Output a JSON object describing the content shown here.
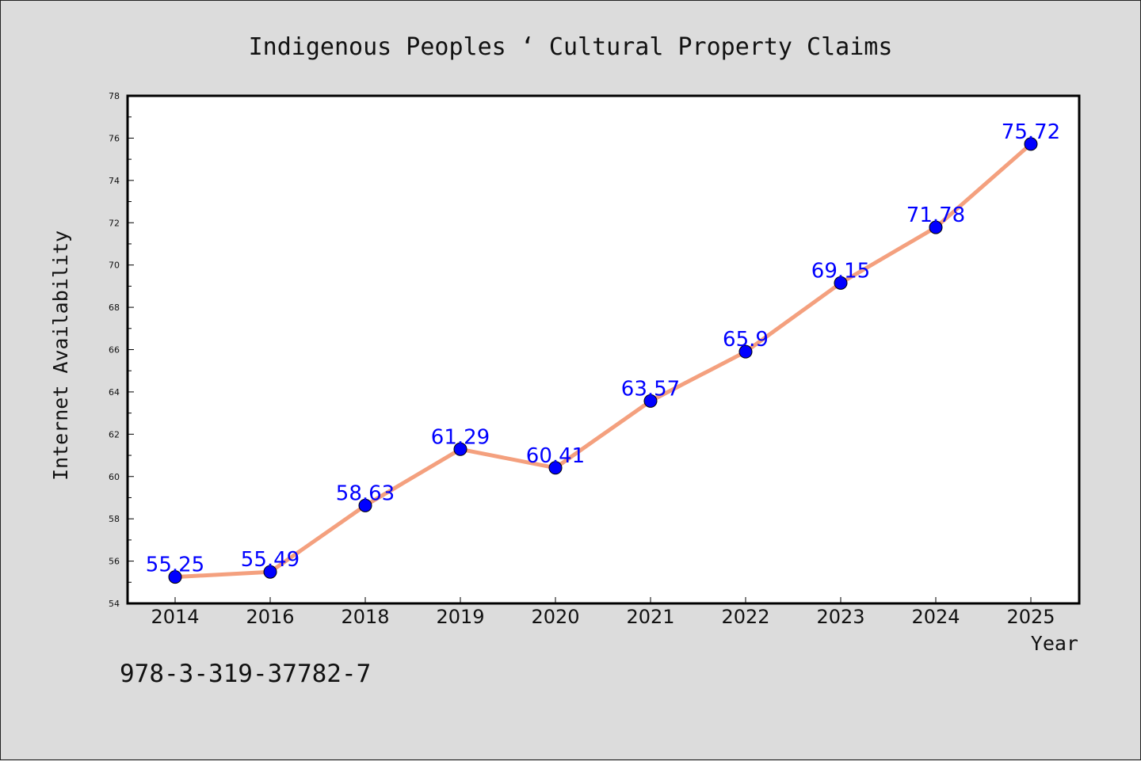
{
  "chart_data": {
    "type": "line",
    "title": "Indigenous Peoples ‘ Cultural Property Claims",
    "xlabel": "Year",
    "ylabel": "Internet Availability",
    "categories": [
      "2014",
      "2016",
      "2018",
      "2019",
      "2020",
      "2021",
      "2022",
      "2023",
      "2024",
      "2025"
    ],
    "series": [
      {
        "values": [
          55.25,
          55.49,
          58.63,
          61.29,
          60.41,
          63.57,
          65.9,
          69.15,
          71.78,
          75.72
        ],
        "labels": [
          "55.25",
          "55.49",
          "58.63",
          "61.29",
          "60.41",
          "63.57",
          "65.9",
          "69.15",
          "71.78",
          "75.72"
        ],
        "line_color": "#f4a07e",
        "marker_color": "#0000ff"
      }
    ],
    "ylim": [
      54,
      78
    ],
    "yticks": [
      "54",
      "56",
      "58",
      "60",
      "62",
      "64",
      "66",
      "68",
      "70",
      "72",
      "74",
      "76",
      "78"
    ],
    "grid": false,
    "legend": "none"
  },
  "footer": {
    "isbn": "978-3-319-37782-7"
  },
  "colors": {
    "background": "#dcdcdc",
    "plot_background": "#ffffff"
  }
}
